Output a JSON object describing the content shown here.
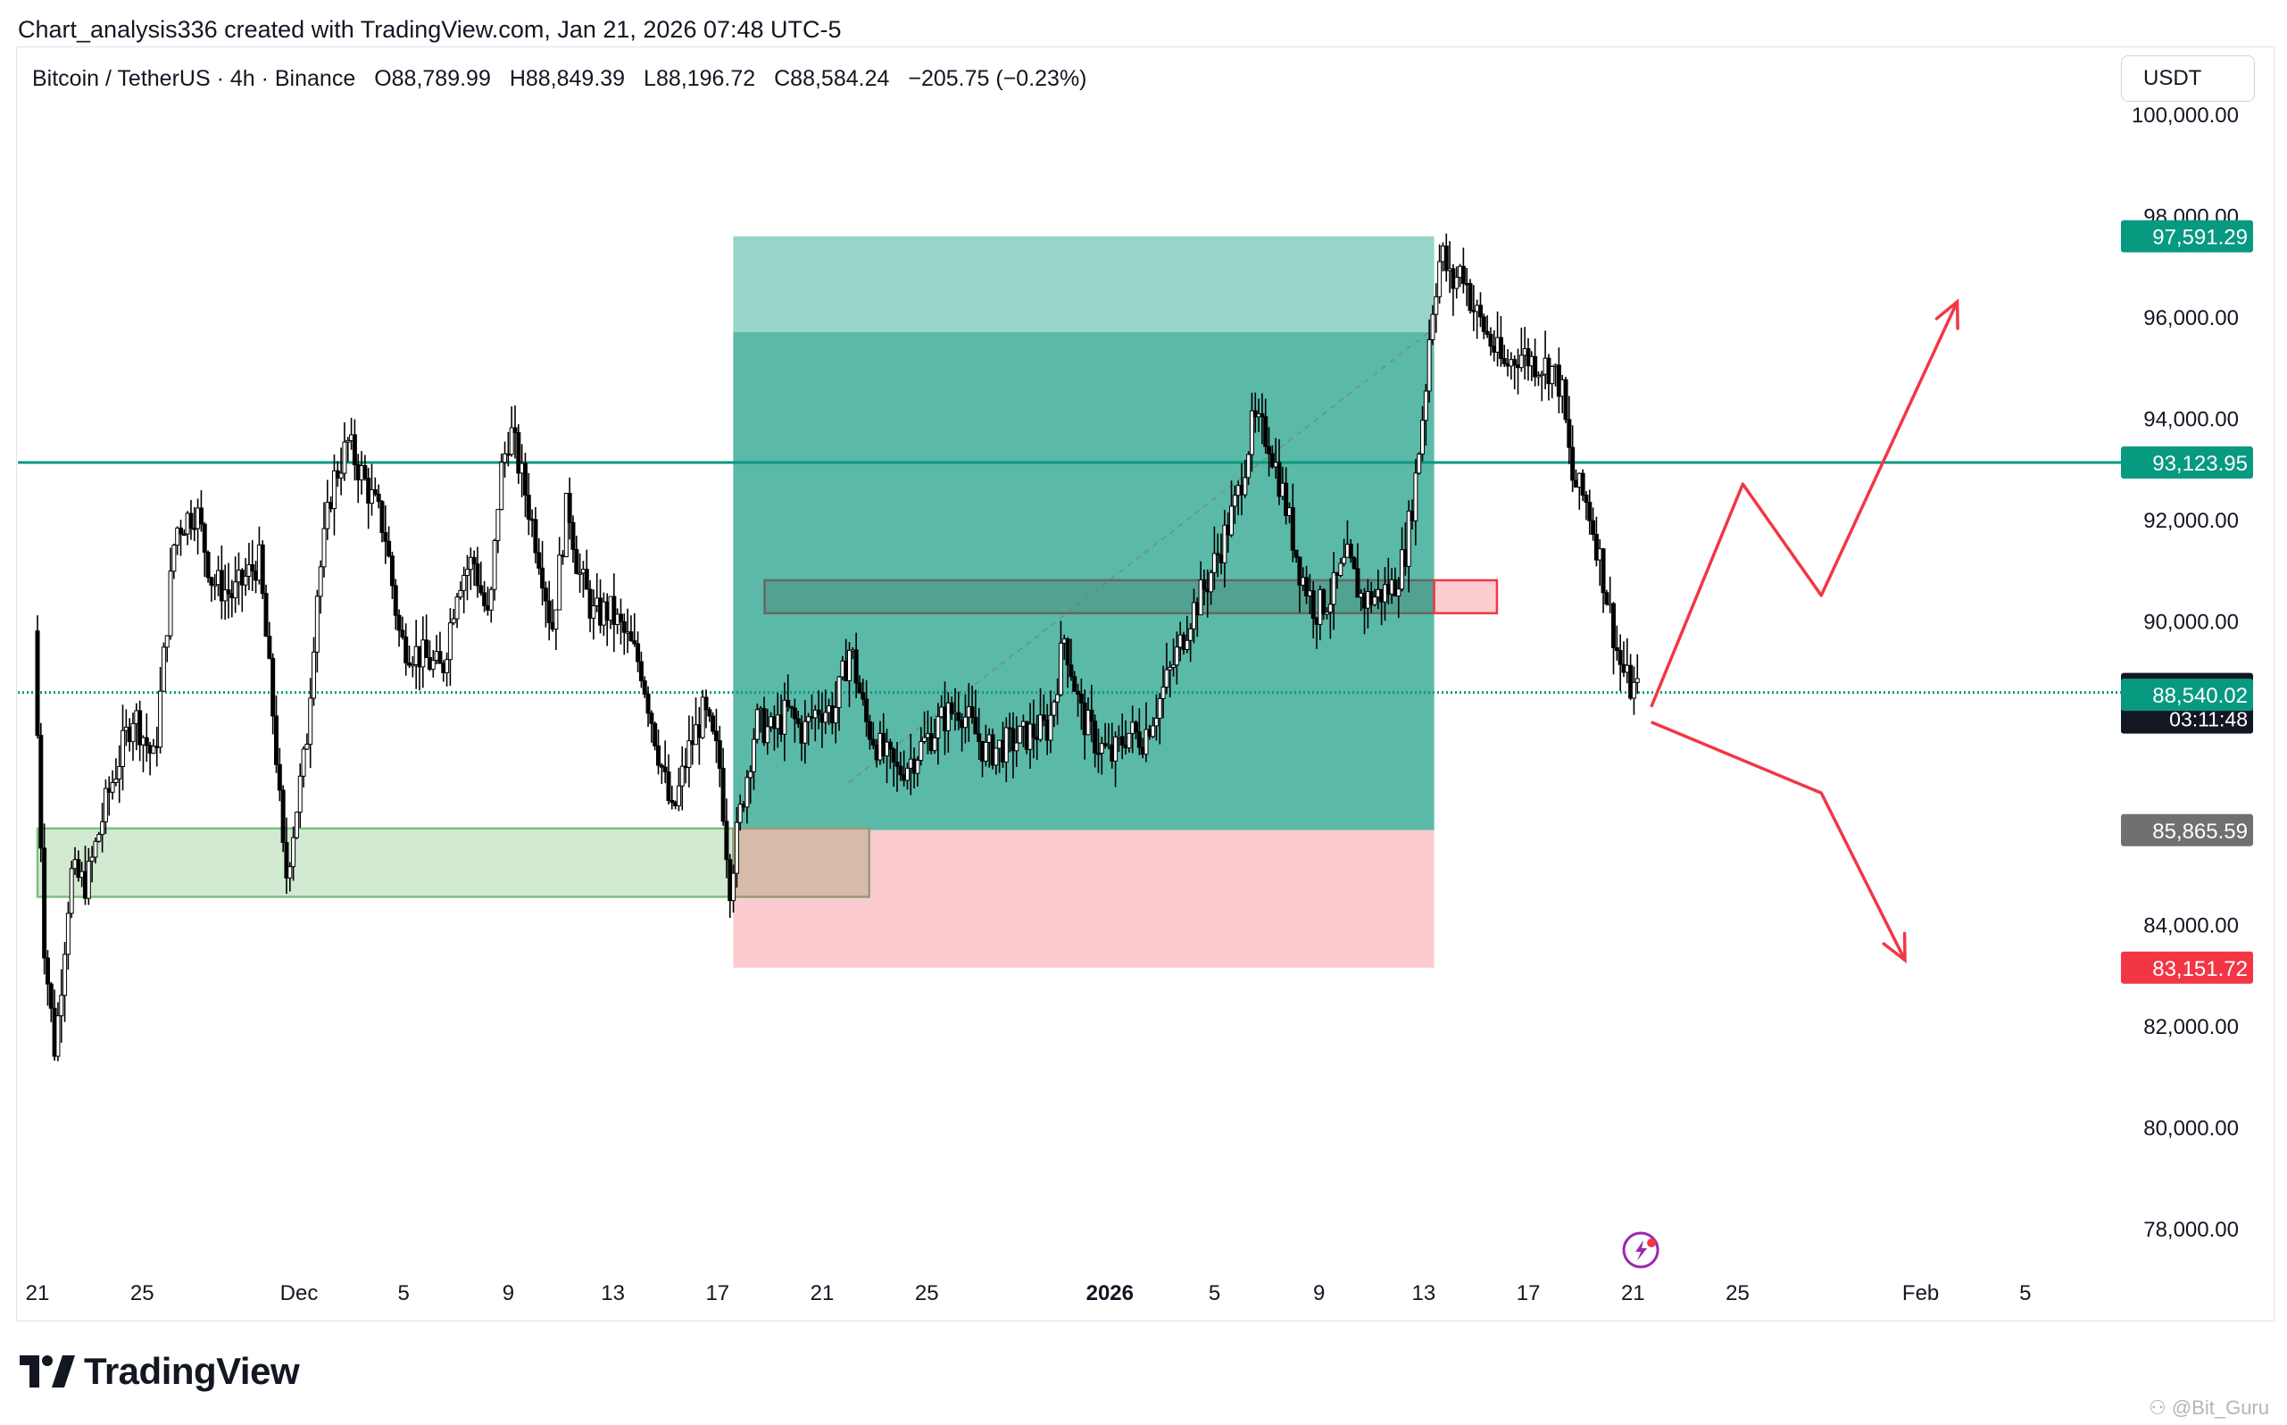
{
  "caption": "Chart_analysis336 created with TradingView.com, Jan 21, 2026 07:48 UTC-5",
  "legend": {
    "symbol": "Bitcoin / TetherUS · 4h · Binance",
    "open": "O88,789.99",
    "high": "H88,849.39",
    "low": "L88,196.72",
    "close": "C88,584.24",
    "change": "−205.75 (−0.23%)"
  },
  "currency_button": "USDT",
  "brand": "TradingView",
  "watermark": "Bit_Guru",
  "colors": {
    "teal_line": "#089981",
    "target_zone": "#5bb9a8",
    "target_zone_light": "#98d5c9",
    "stop_zone": "#fccbd0",
    "demand_zone": "#cfe9cf",
    "red_arrow": "#f23645",
    "candle": "#000000"
  },
  "chart_data": {
    "type": "candlestick",
    "title": "",
    "ylim": [
      76500,
      101000
    ],
    "x_range_days": [
      -61,
      16
    ],
    "y_tick_values": [
      78000,
      80000,
      82000,
      84000,
      86000,
      88000,
      90000,
      92000,
      94000,
      96000,
      98000,
      100000
    ],
    "y_tick_labels": [
      "78,000.00",
      "80,000.00",
      "82,000.00",
      "84,000.00",
      "86,000.00",
      "88,000.00",
      "90,000.00",
      "92,000.00",
      "94,000.00",
      "96,000.00",
      "98,000.00",
      "100,000.00"
    ],
    "x_ticks": [
      {
        "day": -61,
        "label": "21"
      },
      {
        "day": -57,
        "label": "25"
      },
      {
        "day": -51,
        "label": "Dec"
      },
      {
        "day": -47,
        "label": "5"
      },
      {
        "day": -43,
        "label": "9"
      },
      {
        "day": -39,
        "label": "13"
      },
      {
        "day": -35,
        "label": "17"
      },
      {
        "day": -31,
        "label": "21"
      },
      {
        "day": -27,
        "label": "25"
      },
      {
        "day": -20,
        "label": "2026",
        "bold": true
      },
      {
        "day": -16,
        "label": "5"
      },
      {
        "day": -12,
        "label": "9"
      },
      {
        "day": -8,
        "label": "13"
      },
      {
        "day": -4,
        "label": "17"
      },
      {
        "day": 0,
        "label": "21"
      },
      {
        "day": 4,
        "label": "25"
      },
      {
        "day": 11,
        "label": "Feb"
      },
      {
        "day": 15,
        "label": "5"
      }
    ],
    "price_path": [
      [
        -61,
        89800
      ],
      [
        -60.6,
        83500
      ],
      [
        -60.2,
        81500
      ],
      [
        -59.6,
        85000
      ],
      [
        -59,
        84800
      ],
      [
        -58.2,
        86500
      ],
      [
        -57.2,
        88200
      ],
      [
        -56.4,
        87200
      ],
      [
        -55.6,
        91800
      ],
      [
        -54.8,
        92200
      ],
      [
        -54.2,
        90800
      ],
      [
        -53.4,
        90500
      ],
      [
        -52.4,
        91200
      ],
      [
        -51.8,
        87800
      ],
      [
        -51.4,
        84800
      ],
      [
        -51,
        86200
      ],
      [
        -50.6,
        87500
      ],
      [
        -50.2,
        90500
      ],
      [
        -49.6,
        92700
      ],
      [
        -49,
        93500
      ],
      [
        -48.4,
        92800
      ],
      [
        -47.6,
        91800
      ],
      [
        -47,
        89600
      ],
      [
        -46.2,
        89300
      ],
      [
        -45.4,
        89000
      ],
      [
        -44.8,
        90800
      ],
      [
        -44.2,
        91200
      ],
      [
        -43.6,
        89900
      ],
      [
        -43.2,
        92800
      ],
      [
        -42.8,
        93800
      ],
      [
        -42.2,
        92500
      ],
      [
        -41.6,
        91100
      ],
      [
        -41.2,
        89800
      ],
      [
        -40.6,
        92400
      ],
      [
        -40.2,
        91000
      ],
      [
        -39.6,
        90100
      ],
      [
        -39,
        90200
      ],
      [
        -38.4,
        89700
      ],
      [
        -37.8,
        89100
      ],
      [
        -37.2,
        87600
      ],
      [
        -36.6,
        86100
      ],
      [
        -36,
        87400
      ],
      [
        -35.4,
        88200
      ],
      [
        -34.8,
        87200
      ],
      [
        -34.4,
        84800
      ],
      [
        -34,
        86200
      ],
      [
        -33.4,
        88000
      ],
      [
        -32.8,
        87800
      ],
      [
        -32.2,
        88200
      ],
      [
        -31.6,
        87800
      ],
      [
        -31,
        88300
      ],
      [
        -30.4,
        88200
      ],
      [
        -29.8,
        89500
      ],
      [
        -29.2,
        88000
      ],
      [
        -28.6,
        87400
      ],
      [
        -28,
        87000
      ],
      [
        -27.4,
        87300
      ],
      [
        -26.8,
        87700
      ],
      [
        -26.2,
        88100
      ],
      [
        -25.6,
        88300
      ],
      [
        -24.6,
        87400
      ],
      [
        -23.6,
        87600
      ],
      [
        -22.8,
        87800
      ],
      [
        -22.2,
        87900
      ],
      [
        -21.6,
        89700
      ],
      [
        -21,
        88200
      ],
      [
        -20.4,
        87600
      ],
      [
        -19.8,
        87300
      ],
      [
        -19.2,
        87800
      ],
      [
        -18.6,
        87700
      ],
      [
        -18,
        88400
      ],
      [
        -17.4,
        89200
      ],
      [
        -16.8,
        90100
      ],
      [
        -16.2,
        90700
      ],
      [
        -15.6,
        91500
      ],
      [
        -15,
        92400
      ],
      [
        -14.4,
        93900
      ],
      [
        -13.8,
        93600
      ],
      [
        -13.2,
        92400
      ],
      [
        -12.6,
        91000
      ],
      [
        -12,
        90200
      ],
      [
        -11.4,
        90500
      ],
      [
        -10.8,
        91200
      ],
      [
        -10.2,
        90400
      ],
      [
        -9.6,
        90500
      ],
      [
        -9,
        90700
      ],
      [
        -8.6,
        91300
      ],
      [
        -8.2,
        92700
      ],
      [
        -7.8,
        94600
      ],
      [
        -7.6,
        96000
      ],
      [
        -7.2,
        97300
      ],
      [
        -6.8,
        96600
      ],
      [
        -6.4,
        97000
      ],
      [
        -6,
        96200
      ],
      [
        -5.4,
        95600
      ],
      [
        -4.8,
        95000
      ],
      [
        -4.2,
        95300
      ],
      [
        -3.6,
        95100
      ],
      [
        -3,
        95000
      ],
      [
        -2.6,
        94600
      ],
      [
        -2.2,
        92800
      ],
      [
        -1.6,
        92300
      ],
      [
        -1.2,
        91400
      ],
      [
        -0.8,
        90300
      ],
      [
        -0.4,
        89200
      ],
      [
        0,
        88700
      ],
      [
        0.3,
        88600
      ]
    ],
    "candle_count": 470,
    "last_price": 88584.24,
    "horizontal_lines": [
      {
        "price": 93123.95,
        "color": "#089981"
      },
      {
        "price": 88584.24,
        "color": "#089981",
        "dotted": true
      }
    ],
    "price_labels": [
      {
        "price": 97591.29,
        "text": "97,591.29",
        "color": "#089981"
      },
      {
        "price": 93123.95,
        "text": "93,123.95",
        "color": "#089981"
      },
      {
        "price": 88584.24,
        "text": "88,584.24",
        "sub": "03:11:48",
        "color": "#131722"
      },
      {
        "price": 88540.02,
        "text": "88,540.02",
        "color": "#089981"
      },
      {
        "price": 85865.59,
        "text": "85,865.59",
        "color": "#707070"
      },
      {
        "price": 83151.72,
        "text": "83,151.72",
        "color": "#f23645"
      }
    ],
    "position_tool": {
      "day_start": -34.4,
      "day_end": -7.6,
      "entry": 85865.59,
      "target": 97591.29,
      "stop": 83151.72,
      "inner_target": 95700
    },
    "zones": [
      {
        "name": "demand",
        "day_start": -61,
        "day_end": -29.2,
        "top": 85900,
        "bottom": 84550,
        "fill": "#cfe9cf",
        "stroke": "#7fbf7f"
      },
      {
        "name": "overlap",
        "day_start": -34.4,
        "day_end": -29.2,
        "top": 85900,
        "bottom": 84550,
        "fill": "#d6b7a8",
        "stroke": "#9a9a7a"
      },
      {
        "name": "resistance-dark",
        "day_start": -33.2,
        "day_end": -7.6,
        "top": 90800,
        "bottom": 90150,
        "fill": "#4a8f80",
        "stroke": "#666666"
      },
      {
        "name": "resistance-red",
        "day_start": -7.6,
        "day_end": -5.2,
        "top": 90800,
        "bottom": 90150,
        "fill": "#fccbd0",
        "stroke": "#f23645"
      }
    ],
    "projection_up": [
      [
        0.7,
        88300
      ],
      [
        4.2,
        92700
      ],
      [
        7.2,
        90500
      ],
      [
        12.4,
        96300
      ]
    ],
    "projection_down": [
      [
        0.7,
        88000
      ],
      [
        7.2,
        86600
      ],
      [
        10.4,
        83300
      ]
    ]
  }
}
